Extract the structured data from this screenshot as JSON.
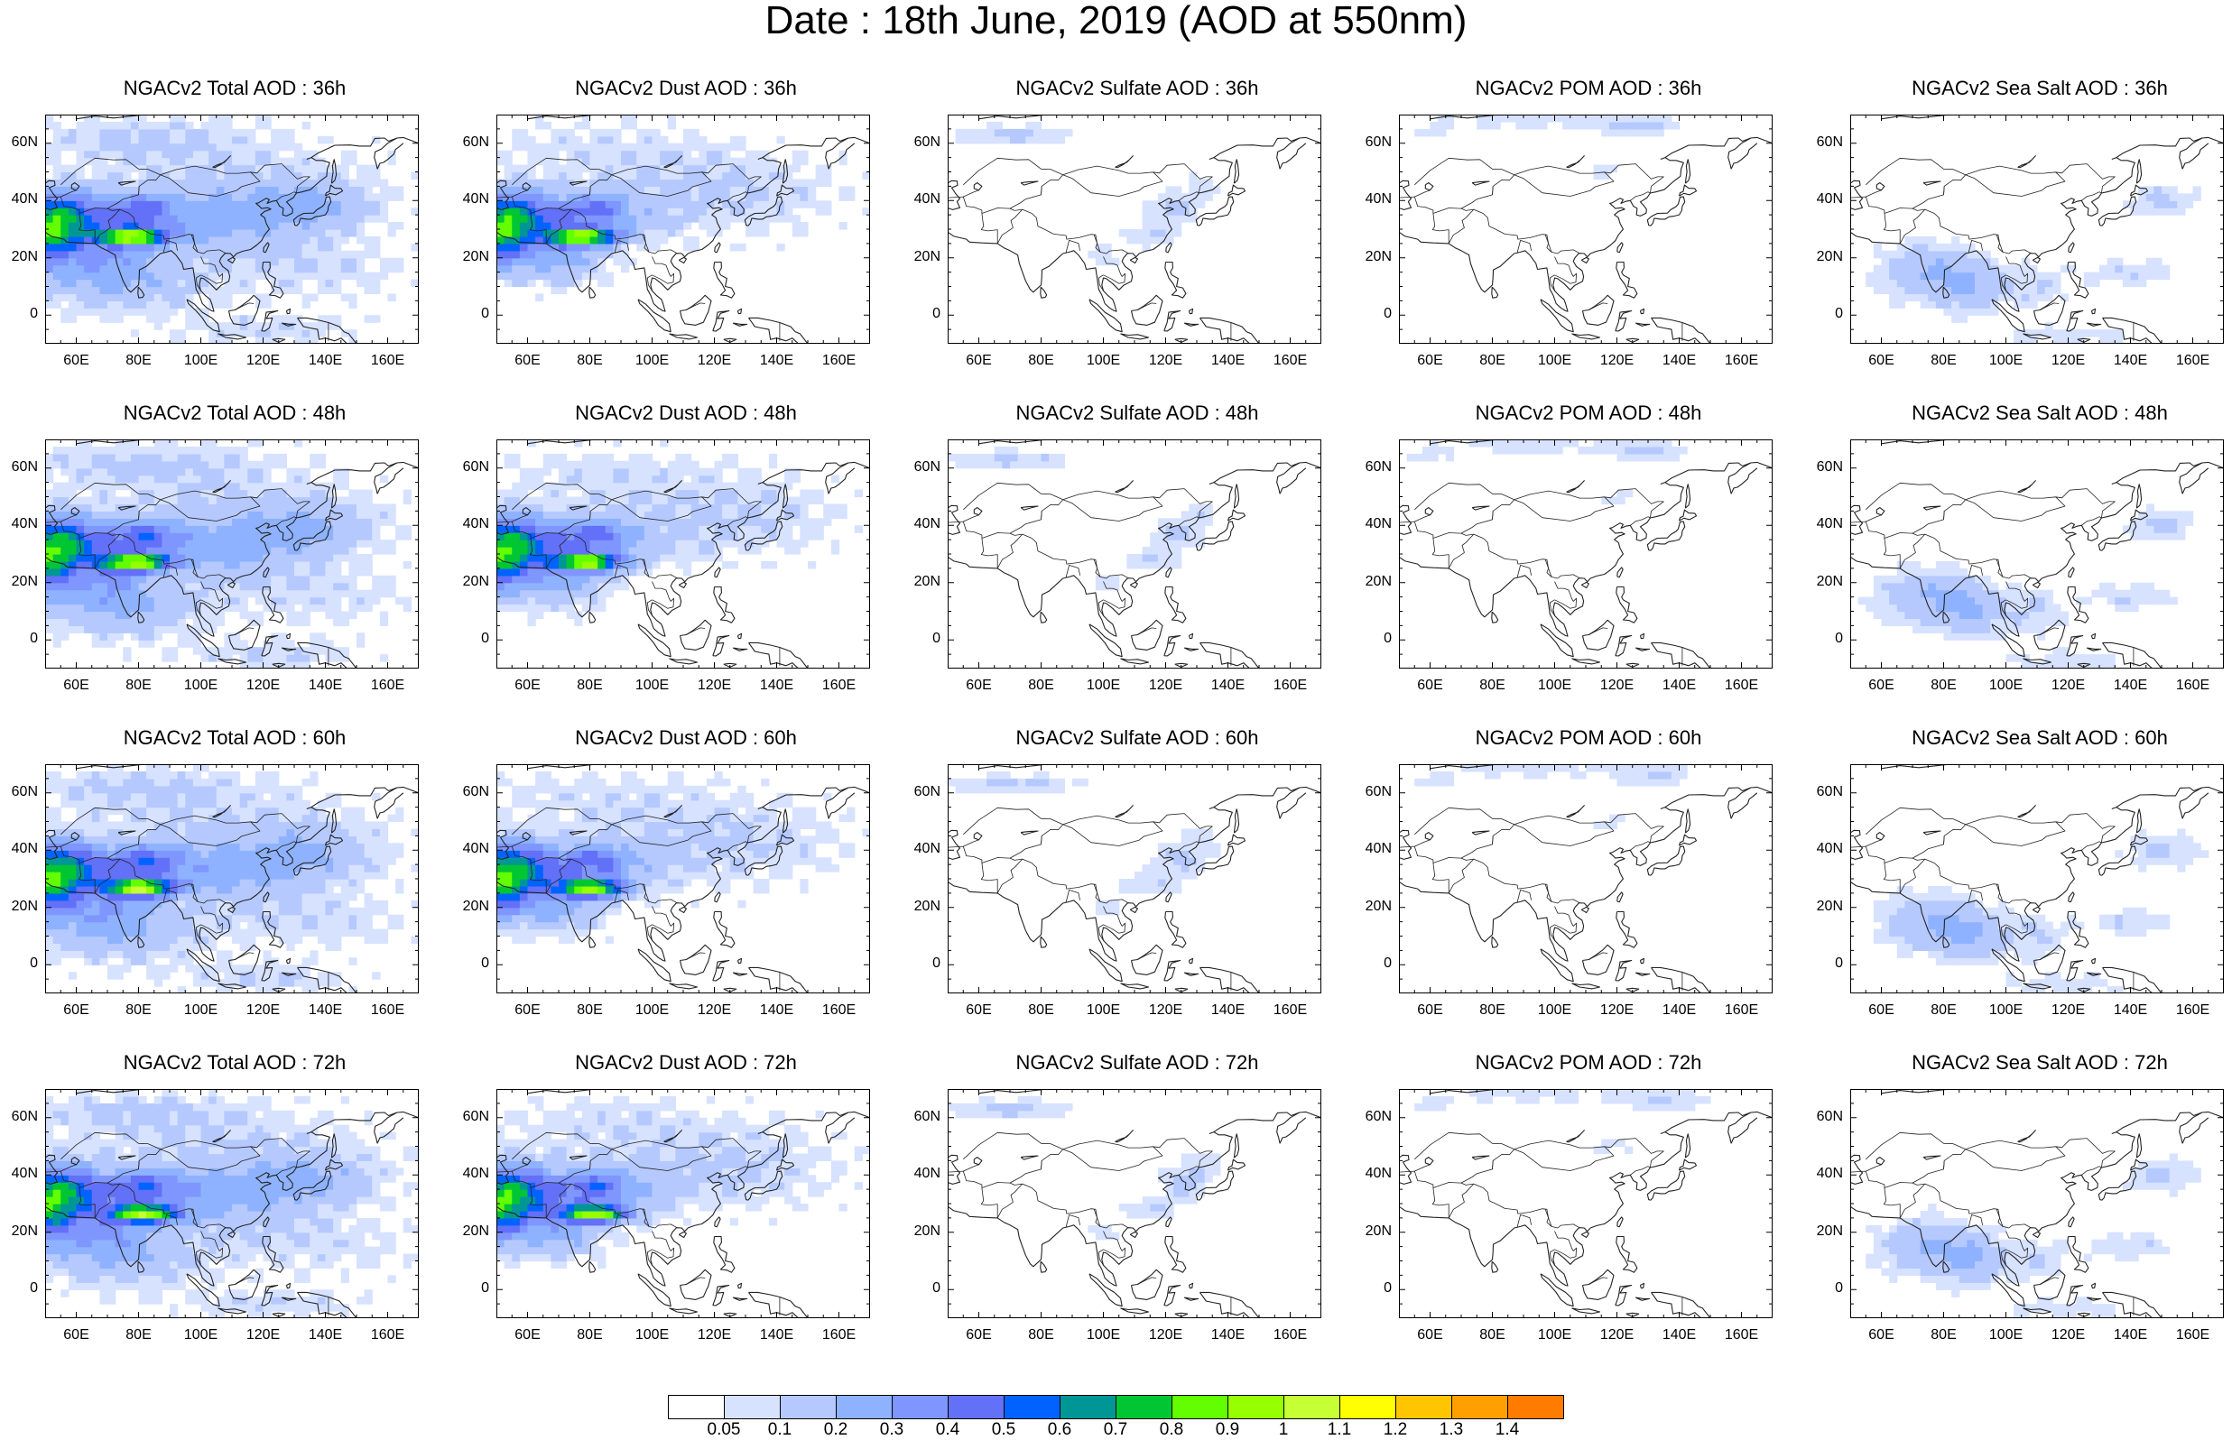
{
  "title": "Date : 18th June, 2019 (AOD at 550nm)",
  "panels": [
    {
      "title": "NGACv2 Total AOD : 36h",
      "field": "total",
      "hour": 36
    },
    {
      "title": "NGACv2 Dust AOD : 36h",
      "field": "dust",
      "hour": 36
    },
    {
      "title": "NGACv2 Sulfate AOD : 36h",
      "field": "sulfate",
      "hour": 36
    },
    {
      "title": "NGACv2 POM AOD : 36h",
      "field": "pom",
      "hour": 36
    },
    {
      "title": "NGACv2 Sea Salt AOD : 36h",
      "field": "seasalt",
      "hour": 36
    },
    {
      "title": "NGACv2 Total AOD : 48h",
      "field": "total",
      "hour": 48
    },
    {
      "title": "NGACv2 Dust AOD : 48h",
      "field": "dust",
      "hour": 48
    },
    {
      "title": "NGACv2 Sulfate AOD : 48h",
      "field": "sulfate",
      "hour": 48
    },
    {
      "title": "NGACv2 POM AOD : 48h",
      "field": "pom",
      "hour": 48
    },
    {
      "title": "NGACv2 Sea Salt AOD : 48h",
      "field": "seasalt",
      "hour": 48
    },
    {
      "title": "NGACv2 Total AOD : 60h",
      "field": "total",
      "hour": 60
    },
    {
      "title": "NGACv2 Dust AOD : 60h",
      "field": "dust",
      "hour": 60
    },
    {
      "title": "NGACv2 Sulfate AOD : 60h",
      "field": "sulfate",
      "hour": 60
    },
    {
      "title": "NGACv2 POM AOD : 60h",
      "field": "pom",
      "hour": 60
    },
    {
      "title": "NGACv2 Sea Salt AOD : 60h",
      "field": "seasalt",
      "hour": 60
    },
    {
      "title": "NGACv2 Total AOD : 72h",
      "field": "total",
      "hour": 72
    },
    {
      "title": "NGACv2 Dust AOD : 72h",
      "field": "dust",
      "hour": 72
    },
    {
      "title": "NGACv2 Sulfate AOD : 72h",
      "field": "sulfate",
      "hour": 72
    },
    {
      "title": "NGACv2 POM AOD : 72h",
      "field": "pom",
      "hour": 72
    },
    {
      "title": "NGACv2 Sea Salt  AOD : 72h",
      "field": "seasalt",
      "hour": 72
    }
  ],
  "map": {
    "lon_range": [
      50,
      170
    ],
    "lat_range": [
      -10,
      70
    ],
    "lat_ticks": [
      "60N",
      "40N",
      "20N",
      "0"
    ],
    "lat_tick_values": [
      60,
      40,
      20,
      0
    ],
    "lon_ticks": [
      "60E",
      "80E",
      "100E",
      "120E",
      "140E",
      "160E"
    ],
    "lon_tick_values": [
      60,
      80,
      100,
      120,
      140,
      160
    ]
  },
  "colorbar": {
    "labels": [
      "0.05",
      "0.1",
      "0.2",
      "0.3",
      "0.4",
      "0.5",
      "0.6",
      "0.7",
      "0.8",
      "0.9",
      "1",
      "1.1",
      "1.2",
      "1.3",
      "1.4"
    ],
    "colors": [
      "#ffffff",
      "#d6e2ff",
      "#b5c9ff",
      "#8eb2ff",
      "#7f96ff",
      "#6370f8",
      "#0063ff",
      "#009696",
      "#00c633",
      "#63ff00",
      "#96ff00",
      "#c6ff33",
      "#ffff00",
      "#ffc600",
      "#ffa000",
      "#ff7c00",
      "#ff1900"
    ]
  }
}
